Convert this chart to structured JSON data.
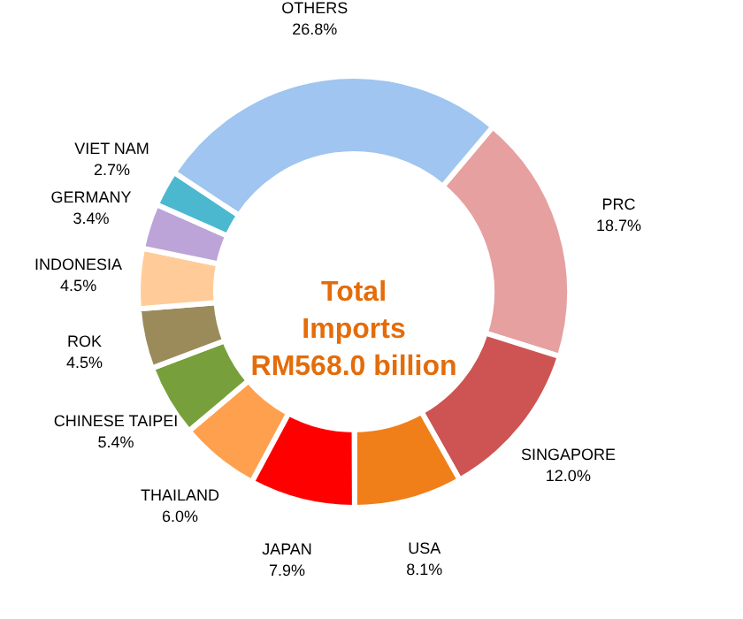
{
  "chart_data": {
    "type": "donut",
    "categories": [
      "PRC",
      "SINGAPORE",
      "USA",
      "JAPAN",
      "THAILAND",
      "CHINESE TAIPEI",
      "ROK",
      "INDONESIA",
      "GERMANY",
      "VIET NAM",
      "OTHERS"
    ],
    "values": [
      18.7,
      12.0,
      8.1,
      7.9,
      6.0,
      5.4,
      4.5,
      4.5,
      3.4,
      2.7,
      26.8
    ],
    "value_labels": [
      "18.7%",
      "12.0%",
      "8.1%",
      "7.9%",
      "6.0%",
      "5.4%",
      "4.5%",
      "4.5%",
      "3.4%",
      "2.7%",
      "26.8%"
    ],
    "colors": [
      "#e6a0a0",
      "#cd5452",
      "#f07f1a",
      "#ff0000",
      "#ffa04f",
      "#77a03c",
      "#9b8b5a",
      "#ffcc99",
      "#bca4d8",
      "#4bb8d0",
      "#9fc5f0"
    ],
    "annotations": [
      "Total Imports RM568.0 billion"
    ],
    "legend": false
  }
}
